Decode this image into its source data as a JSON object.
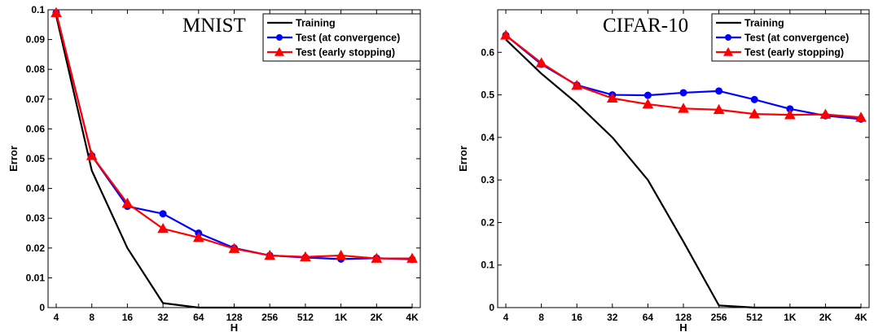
{
  "chart_data": [
    {
      "type": "line",
      "title": "MNIST",
      "xlabel": "H",
      "ylabel": "Error",
      "categories": [
        "4",
        "8",
        "16",
        "32",
        "64",
        "128",
        "256",
        "512",
        "1K",
        "2K",
        "4K"
      ],
      "ylim": [
        0,
        0.1
      ],
      "yticks": [
        "0",
        "0.01",
        "0.02",
        "0.03",
        "0.04",
        "0.05",
        "0.06",
        "0.07",
        "0.08",
        "0.09",
        "0.1"
      ],
      "legend_position": "top-right",
      "series": [
        {
          "name": "Training",
          "color": "#000000",
          "marker": "none",
          "values": [
            0.098,
            0.046,
            0.02,
            0.0015,
            0.0,
            0.0,
            0.0,
            0.0,
            0.0,
            0.0,
            0.0
          ]
        },
        {
          "name": "Test (at convergence)",
          "color": "#0000ff",
          "marker": "circle",
          "values": [
            0.099,
            0.051,
            0.034,
            0.0315,
            0.025,
            0.02,
            0.0175,
            0.0168,
            0.0163,
            0.0166,
            0.0162
          ]
        },
        {
          "name": "Test (early stopping)",
          "color": "#ff0000",
          "marker": "triangle",
          "values": [
            0.099,
            0.051,
            0.035,
            0.0265,
            0.0235,
            0.0198,
            0.0175,
            0.017,
            0.0175,
            0.0165,
            0.0165
          ]
        }
      ]
    },
    {
      "type": "line",
      "title": "CIFAR-10",
      "xlabel": "H",
      "ylabel": "Error",
      "categories": [
        "4",
        "8",
        "16",
        "32",
        "64",
        "128",
        "256",
        "512",
        "1K",
        "2K",
        "4K"
      ],
      "ylim": [
        0,
        0.7
      ],
      "yticks": [
        "0",
        "0.1",
        "0.2",
        "0.3",
        "0.4",
        "0.5",
        "0.6"
      ],
      "legend_position": "top-right",
      "series": [
        {
          "name": "Training",
          "color": "#000000",
          "marker": "none",
          "values": [
            0.63,
            0.55,
            0.48,
            0.4,
            0.3,
            0.155,
            0.005,
            0.0,
            0.0,
            0.0,
            0.0
          ]
        },
        {
          "name": "Test (at convergence)",
          "color": "#0000ff",
          "marker": "circle",
          "values": [
            0.64,
            0.572,
            0.523,
            0.5,
            0.499,
            0.505,
            0.509,
            0.489,
            0.467,
            0.451,
            0.443
          ]
        },
        {
          "name": "Test (early stopping)",
          "color": "#ff0000",
          "marker": "triangle",
          "values": [
            0.64,
            0.575,
            0.522,
            0.492,
            0.478,
            0.468,
            0.465,
            0.455,
            0.453,
            0.454,
            0.447
          ]
        }
      ]
    }
  ]
}
